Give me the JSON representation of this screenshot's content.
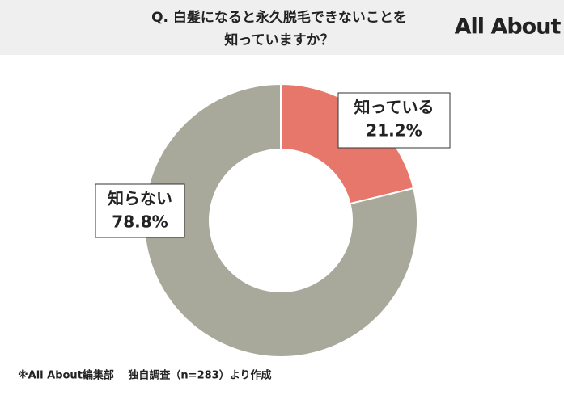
{
  "chart_data": {
    "type": "donut",
    "title": [
      "Q. 白髪になると永久脱毛できないことを",
      "知っていますか？"
    ],
    "logo": "All About",
    "categories": [
      "知っている",
      "知らない"
    ],
    "values": [
      21.2,
      78.8
    ],
    "value_labels": [
      "21.2%",
      "78.8%"
    ],
    "colors": [
      "#e8776b",
      "#a9a99b"
    ],
    "source": "※All About編集部　 独自調査（n=283）より作成"
  }
}
